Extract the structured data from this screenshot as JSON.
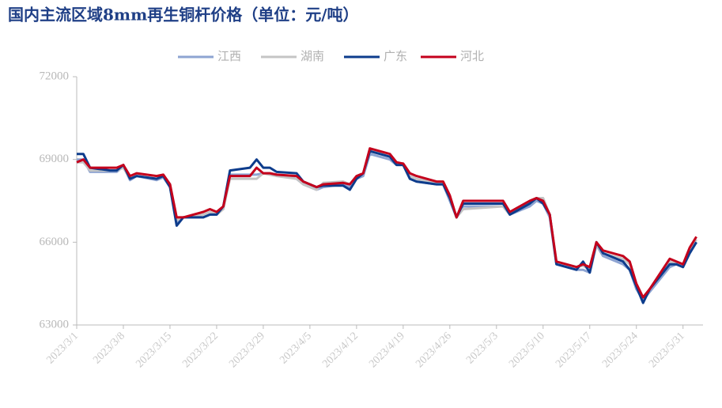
{
  "chart_data": {
    "type": "line",
    "title": "国内主流区域8mm再生铜杆价格（单位：元/吨）",
    "x": [
      "2023/3/1",
      "2023/3/2",
      "2023/3/3",
      "2023/3/6",
      "2023/3/7",
      "2023/3/8",
      "2023/3/9",
      "2023/3/10",
      "2023/3/13",
      "2023/3/14",
      "2023/3/15",
      "2023/3/16",
      "2023/3/17",
      "2023/3/20",
      "2023/3/21",
      "2023/3/22",
      "2023/3/23",
      "2023/3/24",
      "2023/3/27",
      "2023/3/28",
      "2023/3/29",
      "2023/3/30",
      "2023/3/31",
      "2023/4/3",
      "2023/4/4",
      "2023/4/6",
      "2023/4/7",
      "2023/4/10",
      "2023/4/11",
      "2023/4/12",
      "2023/4/13",
      "2023/4/14",
      "2023/4/17",
      "2023/4/18",
      "2023/4/19",
      "2023/4/20",
      "2023/4/21",
      "2023/4/24",
      "2023/4/25",
      "2023/4/26",
      "2023/4/27",
      "2023/4/28",
      "2023/5/4",
      "2023/5/5",
      "2023/5/8",
      "2023/5/9",
      "2023/5/10",
      "2023/5/11",
      "2023/5/12",
      "2023/5/15",
      "2023/5/16",
      "2023/5/17",
      "2023/5/18",
      "2023/5/19",
      "2023/5/22",
      "2023/5/23",
      "2023/5/24",
      "2023/5/25",
      "2023/5/26",
      "2023/5/29",
      "2023/5/30",
      "2023/5/31",
      "2023/6/1",
      "2023/6/2"
    ],
    "series": [
      {
        "name": "江西",
        "color": "#8ea4d2",
        "values": [
          69000,
          69000,
          68550,
          68550,
          68550,
          68750,
          68250,
          68400,
          68250,
          68350,
          68000,
          66700,
          66900,
          66900,
          67000,
          67000,
          67300,
          68450,
          68450,
          68450,
          68500,
          68500,
          68450,
          68300,
          68100,
          67900,
          68000,
          68100,
          68000,
          68300,
          68400,
          69200,
          69000,
          68800,
          68800,
          68300,
          68200,
          68100,
          68100,
          67500,
          66900,
          67300,
          67300,
          67000,
          67300,
          67500,
          67400,
          66900,
          65200,
          65000,
          65000,
          64900,
          65900,
          65500,
          65200,
          65000,
          64300,
          63900,
          64200,
          65100,
          65200,
          65100,
          65600,
          66000
        ]
      },
      {
        "name": "湖南",
        "color": "#c4c4c4",
        "values": [
          68900,
          68900,
          68600,
          68600,
          68600,
          68700,
          68300,
          68400,
          68300,
          68400,
          68100,
          66800,
          66900,
          67000,
          67100,
          67000,
          67200,
          68300,
          68300,
          68300,
          68500,
          68450,
          68400,
          68300,
          68100,
          67900,
          68150,
          68200,
          68100,
          68350,
          68500,
          69350,
          69100,
          68850,
          68800,
          68400,
          68300,
          68150,
          68150,
          67600,
          66900,
          67200,
          67300,
          67000,
          67500,
          67600,
          67600,
          67000,
          65300,
          65100,
          65150,
          65000,
          65900,
          65600,
          65400,
          65200,
          64400,
          64000,
          64300,
          65300,
          65200,
          65100,
          65700,
          66100
        ]
      },
      {
        "name": "广东",
        "color": "#0d3c8c",
        "values": [
          69200,
          69200,
          68700,
          68600,
          68600,
          68800,
          68300,
          68400,
          68300,
          68400,
          68000,
          66600,
          66900,
          66900,
          67000,
          67000,
          67300,
          68600,
          68700,
          69000,
          68700,
          68700,
          68550,
          68500,
          68200,
          68000,
          68050,
          68050,
          67900,
          68300,
          68500,
          69300,
          69100,
          68800,
          68800,
          68300,
          68200,
          68100,
          68100,
          67600,
          66900,
          67400,
          67400,
          67000,
          67400,
          67600,
          67400,
          67000,
          65200,
          65000,
          65300,
          64900,
          66000,
          65600,
          65300,
          65000,
          64400,
          63800,
          64300,
          65200,
          65200,
          65100,
          65600,
          66000
        ]
      },
      {
        "name": "河北",
        "color": "#c4001c",
        "values": [
          68900,
          69000,
          68700,
          68700,
          68700,
          68800,
          68400,
          68500,
          68400,
          68450,
          68100,
          66900,
          66900,
          67100,
          67200,
          67100,
          67300,
          68400,
          68400,
          68700,
          68500,
          68500,
          68450,
          68400,
          68200,
          68000,
          68100,
          68150,
          68100,
          68400,
          68500,
          69400,
          69200,
          68900,
          68850,
          68500,
          68400,
          68200,
          68200,
          67700,
          66900,
          67500,
          67500,
          67100,
          67500,
          67600,
          67500,
          67000,
          65300,
          65100,
          65200,
          65100,
          66000,
          65700,
          65500,
          65300,
          64500,
          64000,
          64300,
          65400,
          65300,
          65200,
          65800,
          66200
        ]
      }
    ],
    "xlim": [
      "2023/3/1",
      "2023/6/3"
    ],
    "xticks": [
      "2023/3/1",
      "2023/3/8",
      "2023/3/15",
      "2023/3/22",
      "2023/3/29",
      "2023/4/5",
      "2023/4/12",
      "2023/4/19",
      "2023/4/26",
      "2023/5/3",
      "2023/5/10",
      "2023/5/17",
      "2023/5/24",
      "2023/5/31"
    ],
    "ylim": [
      63000,
      72000
    ],
    "yticks": [
      63000,
      66000,
      69000,
      72000
    ],
    "legend": "top"
  }
}
